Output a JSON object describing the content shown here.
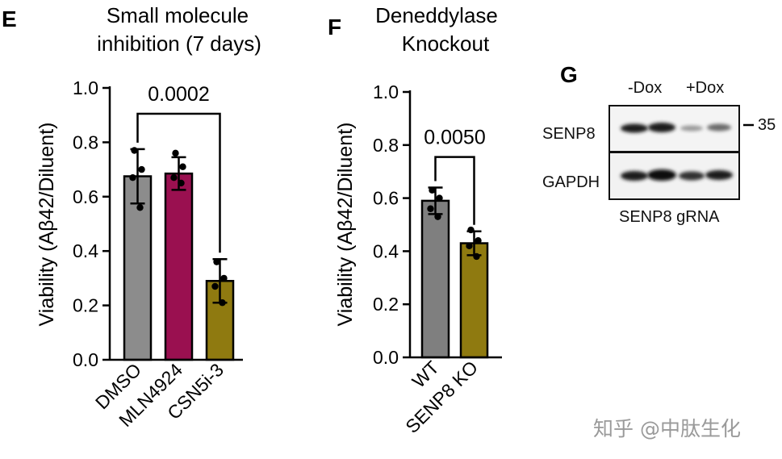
{
  "panels": {
    "E": "E",
    "F": "F",
    "G": "G"
  },
  "chart_data": [
    {
      "type": "bar",
      "title": "Small molecule inhibition (7 days)",
      "title_lines": [
        "Small molecule",
        "inhibition (7 days)"
      ],
      "ylabel": "Viability (Aβ42/Diluent)",
      "ylim": [
        0,
        1.0
      ],
      "yticks": [
        0.0,
        0.2,
        0.4,
        0.6,
        0.8,
        1.0
      ],
      "ytick_labels": [
        "0.0",
        "0.2",
        "0.4",
        "0.6",
        "0.8",
        "1.0"
      ],
      "categories": [
        "DMSO",
        "MLN4924",
        "CSN5i-3"
      ],
      "values": [
        0.675,
        0.685,
        0.29
      ],
      "errors": [
        0.1,
        0.06,
        0.08
      ],
      "points": [
        [
          0.77,
          0.7,
          0.67,
          0.56
        ],
        [
          0.76,
          0.71,
          0.67,
          0.65
        ],
        [
          0.36,
          0.3,
          0.27,
          0.21
        ]
      ],
      "colors": [
        "#8c8c8c",
        "#9a1050",
        "#8f7a10"
      ],
      "annotation": {
        "text": "0.0002",
        "from": 0,
        "to": 2
      }
    },
    {
      "type": "bar",
      "title": "Deneddylase Knockout",
      "title_lines": [
        "Deneddylase",
        "Knockout"
      ],
      "ylabel": "Viability (Aβ42/Diluent)",
      "ylim": [
        0,
        1.0
      ],
      "yticks": [
        0.0,
        0.2,
        0.4,
        0.6,
        0.8,
        1.0
      ],
      "ytick_labels": [
        "0.0",
        "0.2",
        "0.4",
        "0.6",
        "0.8",
        "1.0"
      ],
      "categories": [
        "WT",
        "SENP8 KO"
      ],
      "values": [
        0.59,
        0.43
      ],
      "errors": [
        0.05,
        0.045
      ],
      "points": [
        [
          0.63,
          0.6,
          0.56,
          0.53
        ],
        [
          0.48,
          0.44,
          0.42,
          0.38
        ]
      ],
      "colors": [
        "#7f7f7f",
        "#8f7a10"
      ],
      "annotation": {
        "text": "0.0050",
        "from": 0,
        "to": 1
      }
    }
  ],
  "western_blot": {
    "conditions": [
      "-Dox",
      "+Dox"
    ],
    "rows": [
      "SENP8",
      "GAPDH"
    ],
    "marker": "35",
    "caption": "SENP8 gRNA"
  },
  "watermark": "知乎 @中肽生化"
}
